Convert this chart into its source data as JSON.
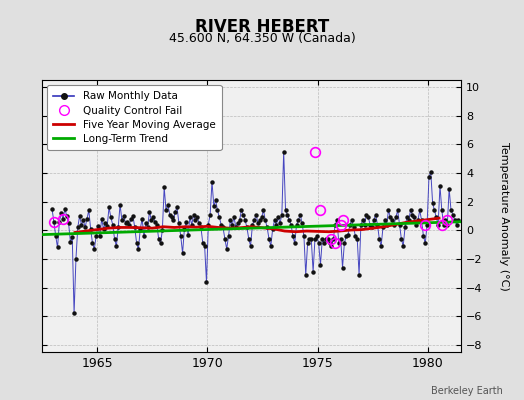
{
  "title": "RIVER HEBERT",
  "subtitle": "45.600 N, 64.350 W (Canada)",
  "ylabel": "Temperature Anomaly (°C)",
  "watermark": "Berkeley Earth",
  "xlim": [
    1962.5,
    1981.5
  ],
  "ylim": [
    -8.5,
    10.5
  ],
  "yticks": [
    -8,
    -6,
    -4,
    -2,
    0,
    2,
    4,
    6,
    8,
    10
  ],
  "xticks": [
    1965,
    1970,
    1975,
    1980
  ],
  "fig_bg_color": "#e0e0e0",
  "plot_bg_color": "#f0f0f0",
  "raw_line_color": "#3333bb",
  "raw_dot_color": "#111111",
  "qc_color": "#ff00ff",
  "moving_avg_color": "#cc0000",
  "trend_color": "#00aa00",
  "grid_color": "#bbbbbb",
  "raw_x": [
    1962.958,
    1963.042,
    1963.125,
    1963.208,
    1963.292,
    1963.375,
    1963.458,
    1963.542,
    1963.625,
    1963.708,
    1963.792,
    1963.875,
    1963.958,
    1964.042,
    1964.125,
    1964.208,
    1964.292,
    1964.375,
    1964.458,
    1964.542,
    1964.625,
    1964.708,
    1964.792,
    1964.875,
    1964.958,
    1965.042,
    1965.125,
    1965.208,
    1965.292,
    1965.375,
    1965.458,
    1965.542,
    1965.625,
    1965.708,
    1965.792,
    1965.875,
    1965.958,
    1966.042,
    1966.125,
    1966.208,
    1966.292,
    1966.375,
    1966.458,
    1966.542,
    1966.625,
    1966.708,
    1966.792,
    1966.875,
    1966.958,
    1967.042,
    1967.125,
    1967.208,
    1967.292,
    1967.375,
    1967.458,
    1967.542,
    1967.625,
    1967.708,
    1967.792,
    1967.875,
    1967.958,
    1968.042,
    1968.125,
    1968.208,
    1968.292,
    1968.375,
    1968.458,
    1968.542,
    1968.625,
    1968.708,
    1968.792,
    1968.875,
    1968.958,
    1969.042,
    1969.125,
    1969.208,
    1969.292,
    1969.375,
    1969.458,
    1969.542,
    1969.625,
    1969.708,
    1969.792,
    1969.875,
    1969.958,
    1970.042,
    1970.125,
    1970.208,
    1970.292,
    1970.375,
    1970.458,
    1970.542,
    1970.625,
    1970.708,
    1970.792,
    1970.875,
    1970.958,
    1971.042,
    1971.125,
    1971.208,
    1971.292,
    1971.375,
    1971.458,
    1971.542,
    1971.625,
    1971.708,
    1971.792,
    1971.875,
    1971.958,
    1972.042,
    1972.125,
    1972.208,
    1972.292,
    1972.375,
    1972.458,
    1972.542,
    1972.625,
    1972.708,
    1972.792,
    1972.875,
    1972.958,
    1973.042,
    1973.125,
    1973.208,
    1973.292,
    1973.375,
    1973.458,
    1973.542,
    1973.625,
    1973.708,
    1973.792,
    1973.875,
    1973.958,
    1974.042,
    1974.125,
    1974.208,
    1974.292,
    1974.375,
    1974.458,
    1974.542,
    1974.625,
    1974.708,
    1974.792,
    1974.875,
    1974.958,
    1975.042,
    1975.125,
    1975.208,
    1975.292,
    1975.375,
    1975.458,
    1975.542,
    1975.625,
    1975.708,
    1975.792,
    1975.875,
    1975.958,
    1976.042,
    1976.125,
    1976.208,
    1976.292,
    1976.375,
    1976.458,
    1976.542,
    1976.625,
    1976.708,
    1976.792,
    1976.875,
    1976.958,
    1977.042,
    1977.125,
    1977.208,
    1977.292,
    1977.375,
    1977.458,
    1977.542,
    1977.625,
    1977.708,
    1977.792,
    1977.875,
    1977.958,
    1978.042,
    1978.125,
    1978.208,
    1978.292,
    1978.375,
    1978.458,
    1978.542,
    1978.625,
    1978.708,
    1978.792,
    1978.875,
    1978.958,
    1979.042,
    1979.125,
    1979.208,
    1979.292,
    1979.375,
    1979.458,
    1979.542,
    1979.625,
    1979.708,
    1979.792,
    1979.875,
    1979.958,
    1980.042,
    1980.125,
    1980.208,
    1980.292,
    1980.375,
    1980.458,
    1980.542,
    1980.625,
    1980.708,
    1980.792,
    1980.875,
    1980.958,
    1981.042,
    1981.125,
    1981.208,
    1981.292,
    1981.375
  ],
  "raw_y": [
    1.5,
    0.6,
    -0.4,
    -1.2,
    0.6,
    1.2,
    0.8,
    1.5,
    1.0,
    0.5,
    -0.8,
    -0.5,
    -5.8,
    -2.0,
    0.2,
    1.0,
    0.4,
    0.7,
    0.2,
    0.8,
    1.4,
    0.1,
    -0.9,
    -1.3,
    -0.4,
    0.3,
    -0.4,
    0.8,
    0.1,
    0.5,
    0.3,
    1.6,
    0.9,
    0.4,
    -0.6,
    -1.1,
    0.2,
    1.8,
    0.7,
    1.0,
    0.5,
    0.6,
    0.4,
    0.8,
    1.0,
    0.2,
    -0.9,
    -1.3,
    0.1,
    0.8,
    -0.4,
    0.5,
    0.2,
    1.3,
    0.7,
    0.9,
    0.6,
    0.4,
    -0.6,
    -0.9,
    0.0,
    3.0,
    1.4,
    1.8,
    1.1,
    0.9,
    0.7,
    1.3,
    1.6,
    0.5,
    -0.4,
    -1.6,
    0.1,
    0.6,
    -0.3,
    0.9,
    0.4,
    1.1,
    0.7,
    0.9,
    0.5,
    0.2,
    -0.9,
    -1.1,
    -3.6,
    0.4,
    1.1,
    3.4,
    1.7,
    2.1,
    1.4,
    0.9,
    0.4,
    0.2,
    -0.6,
    -1.3,
    -0.4,
    0.7,
    0.4,
    0.9,
    0.2,
    0.5,
    0.7,
    1.4,
    1.1,
    0.7,
    0.2,
    -0.6,
    -1.1,
    0.4,
    0.7,
    1.1,
    0.5,
    0.7,
    0.9,
    1.4,
    0.7,
    0.2,
    -0.6,
    -1.1,
    0.1,
    0.7,
    0.4,
    0.9,
    0.5,
    1.1,
    5.5,
    1.4,
    1.1,
    0.7,
    0.4,
    -0.4,
    -0.9,
    0.4,
    0.7,
    1.1,
    0.5,
    -0.4,
    -3.1,
    -0.9,
    -0.6,
    -0.6,
    -2.9,
    -0.6,
    -0.4,
    -0.9,
    -2.4,
    -0.6,
    -0.9,
    -0.6,
    -0.6,
    -0.9,
    -1.1,
    -0.6,
    0.4,
    0.7,
    -0.9,
    -0.6,
    -2.6,
    -0.9,
    -0.4,
    -0.3,
    0.4,
    0.7,
    0.2,
    -0.4,
    -0.6,
    -3.1,
    0.4,
    0.7,
    0.4,
    1.1,
    0.9,
    0.4,
    0.2,
    0.7,
    1.1,
    0.4,
    -0.6,
    -1.1,
    0.2,
    0.7,
    0.4,
    1.4,
    0.9,
    0.7,
    0.4,
    0.9,
    1.4,
    0.4,
    -0.6,
    -1.1,
    0.2,
    0.9,
    0.7,
    1.4,
    1.1,
    0.9,
    0.4,
    0.7,
    1.4,
    0.7,
    -0.4,
    -0.9,
    0.4,
    3.7,
    4.1,
    1.9,
    1.4,
    0.9,
    0.4,
    3.1,
    1.4,
    0.4,
    0.7,
    0.4,
    2.9,
    1.4,
    1.1,
    0.7,
    0.4,
    0.7
  ],
  "qc_fail_x": [
    1963.042,
    1963.458,
    1974.875,
    1975.125,
    1975.625,
    1975.792,
    1976.042,
    1976.125,
    1979.875,
    1980.625,
    1980.875
  ],
  "qc_fail_y": [
    0.6,
    0.8,
    5.5,
    1.4,
    -0.6,
    -0.9,
    0.4,
    0.7,
    0.4,
    0.4,
    0.7
  ],
  "moving_avg_x": [
    1964.0,
    1964.5,
    1965.0,
    1965.5,
    1966.0,
    1966.5,
    1967.0,
    1967.5,
    1968.0,
    1968.5,
    1969.0,
    1969.5,
    1970.0,
    1970.5,
    1971.0,
    1971.5,
    1972.0,
    1972.5,
    1973.0,
    1973.5,
    1974.0,
    1974.5,
    1975.5,
    1976.0,
    1976.5,
    1977.0,
    1977.5,
    1978.0,
    1978.5,
    1979.0,
    1979.5,
    1980.0,
    1980.5
  ],
  "moving_avg_y": [
    -0.15,
    -0.05,
    0.05,
    0.15,
    0.2,
    0.2,
    0.18,
    0.15,
    0.25,
    0.2,
    0.25,
    0.22,
    0.28,
    0.2,
    0.15,
    0.18,
    0.25,
    0.18,
    0.1,
    -0.05,
    -0.1,
    -0.05,
    -0.1,
    -0.05,
    0.02,
    0.05,
    0.15,
    0.25,
    0.4,
    0.55,
    0.65,
    0.75,
    0.85
  ],
  "trend_x": [
    1962.5,
    1981.5
  ],
  "trend_y": [
    -0.3,
    0.6
  ]
}
